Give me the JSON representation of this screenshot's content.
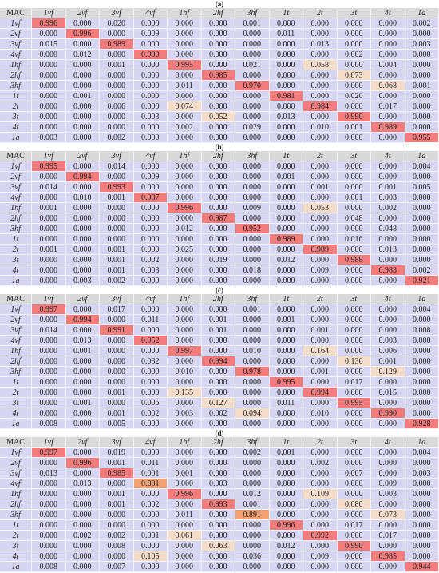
{
  "panels": [
    {
      "label": "(a)",
      "header": [
        "MAC",
        "1vf",
        "2vf",
        "3vf",
        "4vf",
        "1hf",
        "2hf",
        "3hf",
        "1t",
        "2t",
        "3t",
        "4t",
        "1a"
      ],
      "rows": [
        {
          "label": "1vf",
          "cells": [
            "0.996",
            "0.000",
            "0.020",
            "0.000",
            "0.000",
            "0.000",
            "0.001",
            "0.000",
            "0.000",
            "0.000",
            "0.000",
            "0.002"
          ]
        },
        {
          "label": "2vf",
          "cells": [
            "0.000",
            "0.996",
            "0.000",
            "0.009",
            "0.000",
            "0.000",
            "0.000",
            "0.011",
            "0.000",
            "0.000",
            "0.000",
            "0.000"
          ]
        },
        {
          "label": "3vf",
          "cells": [
            "0.015",
            "0.000",
            "0.989",
            "0.000",
            "0.000",
            "0.000",
            "0.000",
            "0.000",
            "0.013",
            "0.000",
            "0.000",
            "0.003"
          ]
        },
        {
          "label": "4vf",
          "cells": [
            "0.000",
            "0.012",
            "0.000",
            "0.990",
            "0.000",
            "0.000",
            "0.000",
            "0.000",
            "0.000",
            "0.002",
            "0.000",
            "0.000"
          ]
        },
        {
          "label": "1hf",
          "cells": [
            "0.000",
            "0.000",
            "0.001",
            "0.000",
            "0.995",
            "0.000",
            "0.021",
            "0.000",
            "0.058",
            "0.000",
            "0.004",
            "0.000"
          ]
        },
        {
          "label": "2hf",
          "cells": [
            "0.000",
            "0.000",
            "0.000",
            "0.000",
            "0.000",
            "0.985",
            "0.000",
            "0.000",
            "0.000",
            "0.073",
            "0.000",
            "0.000"
          ]
        },
        {
          "label": "3hf",
          "cells": [
            "0.000",
            "0.000",
            "0.000",
            "0.000",
            "0.011",
            "0.000",
            "0.970",
            "0.000",
            "0.000",
            "0.000",
            "0.068",
            "0.001"
          ]
        },
        {
          "label": "1t",
          "cells": [
            "0.000",
            "0.001",
            "0.000",
            "0.000",
            "0.000",
            "0.000",
            "0.000",
            "0.981",
            "0.000",
            "0.020",
            "0.000",
            "0.000"
          ]
        },
        {
          "label": "2t",
          "cells": [
            "0.000",
            "0.000",
            "0.006",
            "0.000",
            "0.074",
            "0.000",
            "0.000",
            "0.000",
            "0.984",
            "0.000",
            "0.017",
            "0.000"
          ]
        },
        {
          "label": "3t",
          "cells": [
            "0.000",
            "0.000",
            "0.000",
            "0.003",
            "0.000",
            "0.052",
            "0.000",
            "0.013",
            "0.000",
            "0.990",
            "0.000",
            "0.000"
          ]
        },
        {
          "label": "4t",
          "cells": [
            "0.000",
            "0.000",
            "0.000",
            "0.000",
            "0.002",
            "0.000",
            "0.029",
            "0.000",
            "0.010",
            "0.001",
            "0.989",
            "0.000"
          ]
        },
        {
          "label": "1a",
          "cells": [
            "0.003",
            "0.000",
            "0.002",
            "0.000",
            "0.000",
            "0.000",
            "0.000",
            "0.000",
            "0.000",
            "0.000",
            "0.000",
            "0.955"
          ]
        }
      ]
    },
    {
      "label": "(b)",
      "header": [
        "MAC",
        "1vf",
        "2vf",
        "3vf",
        "4vf",
        "1hf",
        "2hf",
        "3hf",
        "1t",
        "2t",
        "3t",
        "4t",
        "1a"
      ],
      "rows": [
        {
          "label": "1vf",
          "cells": [
            "0.995",
            "0.000",
            "0.014",
            "0.000",
            "0.000",
            "0.000",
            "0.000",
            "0.000",
            "0.000",
            "0.000",
            "0.000",
            "0.004"
          ]
        },
        {
          "label": "2vf",
          "cells": [
            "0.000",
            "0.994",
            "0.000",
            "0.009",
            "0.000",
            "0.000",
            "0.000",
            "0.001",
            "0.000",
            "0.000",
            "0.000",
            "0.000"
          ]
        },
        {
          "label": "3vf",
          "cells": [
            "0.014",
            "0.000",
            "0.993",
            "0.000",
            "0.000",
            "0.000",
            "0.000",
            "0.000",
            "0.001",
            "0.000",
            "0.001",
            "0.005"
          ]
        },
        {
          "label": "4vf",
          "cells": [
            "0.000",
            "0.010",
            "0.001",
            "0.987",
            "0.000",
            "0.000",
            "0.000",
            "0.000",
            "0.000",
            "0.001",
            "0.003",
            "0.000"
          ]
        },
        {
          "label": "1hf",
          "cells": [
            "0.001",
            "0.000",
            "0.000",
            "0.000",
            "0.996",
            "0.000",
            "0.009",
            "0.000",
            "0.053",
            "0.000",
            "0.002",
            "0.000"
          ]
        },
        {
          "label": "2hf",
          "cells": [
            "0.000",
            "0.000",
            "0.000",
            "0.000",
            "0.000",
            "0.987",
            "0.000",
            "0.000",
            "0.000",
            "0.048",
            "0.000",
            "0.000"
          ]
        },
        {
          "label": "3hf",
          "cells": [
            "0.000",
            "0.000",
            "0.000",
            "0.000",
            "0.012",
            "0.000",
            "0.952",
            "0.000",
            "0.000",
            "0.000",
            "0.048",
            "0.000"
          ]
        },
        {
          "label": "1t",
          "cells": [
            "0.000",
            "0.000",
            "0.000",
            "0.000",
            "0.000",
            "0.000",
            "0.000",
            "0.989",
            "0.000",
            "0.016",
            "0.000",
            "0.000"
          ]
        },
        {
          "label": "2t",
          "cells": [
            "0.001",
            "0.000",
            "0.001",
            "0.000",
            "0.025",
            "0.000",
            "0.000",
            "0.000",
            "0.989",
            "0.000",
            "0.013",
            "0.000"
          ]
        },
        {
          "label": "3t",
          "cells": [
            "0.000",
            "0.000",
            "0.001",
            "0.002",
            "0.000",
            "0.019",
            "0.000",
            "0.012",
            "0.000",
            "0.988",
            "0.000",
            "0.000"
          ]
        },
        {
          "label": "4t",
          "cells": [
            "0.000",
            "0.000",
            "0.001",
            "0.003",
            "0.000",
            "0.000",
            "0.018",
            "0.000",
            "0.009",
            "0.000",
            "0.983",
            "0.002"
          ]
        },
        {
          "label": "1a",
          "cells": [
            "0.000",
            "0.003",
            "0.002",
            "0.000",
            "0.000",
            "0.000",
            "0.000",
            "0.000",
            "0.000",
            "0.000",
            "0.000",
            "0.921"
          ]
        }
      ]
    },
    {
      "label": "(c)",
      "header": [
        "MAC",
        "1vf",
        "2vf",
        "3vf",
        "4vf",
        "1hf",
        "2hf",
        "3hf",
        "1t",
        "2t",
        "3t",
        "4t",
        "1a"
      ],
      "rows": [
        {
          "label": "1vf",
          "cells": [
            "0.997",
            "0.000",
            "0.017",
            "0.000",
            "0.000",
            "0.000",
            "0.001",
            "0.000",
            "0.000",
            "0.000",
            "0.000",
            "0.004"
          ]
        },
        {
          "label": "2vf",
          "cells": [
            "0.000",
            "0.994",
            "0.000",
            "0.011",
            "0.000",
            "0.001",
            "0.000",
            "0.001",
            "0.000",
            "0.000",
            "0.000",
            "0.000"
          ]
        },
        {
          "label": "3vf",
          "cells": [
            "0.014",
            "0.000",
            "0.991",
            "0.000",
            "0.000",
            "0.001",
            "0.000",
            "0.000",
            "0.001",
            "0.000",
            "0.000",
            "0.008"
          ]
        },
        {
          "label": "4vf",
          "cells": [
            "0.000",
            "0.013",
            "0.000",
            "0.952",
            "0.000",
            "0.000",
            "0.000",
            "0.000",
            "0.000",
            "0.000",
            "0.003",
            "0.000"
          ]
        },
        {
          "label": "1hf",
          "cells": [
            "0.000",
            "0.001",
            "0.000",
            "0.000",
            "0.997",
            "0.000",
            "0.010",
            "0.000",
            "0.164",
            "0.000",
            "0.006",
            "0.000"
          ]
        },
        {
          "label": "2hf",
          "cells": [
            "0.000",
            "0.000",
            "0.000",
            "0.032",
            "0.000",
            "0.994",
            "0.000",
            "0.000",
            "0.000",
            "0.136",
            "0.001",
            "0.000"
          ]
        },
        {
          "label": "3hf",
          "cells": [
            "0.000",
            "0.000",
            "0.000",
            "0.000",
            "0.010",
            "0.000",
            "0.978",
            "0.000",
            "0.001",
            "0.000",
            "0.129",
            "0.000"
          ]
        },
        {
          "label": "1t",
          "cells": [
            "0.000",
            "0.000",
            "0.000",
            "0.000",
            "0.000",
            "0.000",
            "0.000",
            "0.995",
            "0.000",
            "0.017",
            "0.000",
            "0.000"
          ]
        },
        {
          "label": "2t",
          "cells": [
            "0.000",
            "0.000",
            "0.001",
            "0.000",
            "0.135",
            "0.000",
            "0.000",
            "0.000",
            "0.994",
            "0.000",
            "0.015",
            "0.000"
          ]
        },
        {
          "label": "3t",
          "cells": [
            "0.000",
            "0.001",
            "0.000",
            "0.006",
            "0.000",
            "0.127",
            "0.000",
            "0.011",
            "0.000",
            "0.995",
            "0.000",
            "0.000"
          ]
        },
        {
          "label": "4t",
          "cells": [
            "0.000",
            "0.000",
            "0.001",
            "0.002",
            "0.003",
            "0.002",
            "0.094",
            "0.000",
            "0.010",
            "0.000",
            "0.990",
            "0.000"
          ]
        },
        {
          "label": "1a",
          "cells": [
            "0.008",
            "0.000",
            "0.005",
            "0.000",
            "0.000",
            "0.000",
            "0.000",
            "0.000",
            "0.000",
            "0.000",
            "0.000",
            "0.928"
          ]
        }
      ]
    },
    {
      "label": "(d)",
      "header": [
        "MAC",
        "1vf",
        "2vf",
        "3vf",
        "4vf",
        "1hf",
        "2hf",
        "3hf",
        "1t",
        "2t",
        "3t",
        "4t",
        "1a"
      ],
      "rows": [
        {
          "label": "1vf",
          "cells": [
            "0.997",
            "0.000",
            "0.019",
            "0.000",
            "0.000",
            "0.000",
            "0.002",
            "0.001",
            "0.000",
            "0.000",
            "0.000",
            "0.004"
          ]
        },
        {
          "label": "2vf",
          "cells": [
            "0.000",
            "0.996",
            "0.001",
            "0.011",
            "0.000",
            "0.000",
            "0.000",
            "0.000",
            "0.002",
            "0.000",
            "0.000",
            "0.000"
          ]
        },
        {
          "label": "3vf",
          "cells": [
            "0.013",
            "0.000",
            "0.985",
            "0.001",
            "0.001",
            "0.000",
            "0.000",
            "0.000",
            "0.000",
            "0.007",
            "0.000",
            "0.003"
          ]
        },
        {
          "label": "4vf",
          "cells": [
            "0.000",
            "0.013",
            "0.000",
            "0.881",
            "0.000",
            "0.003",
            "0.000",
            "0.000",
            "0.000",
            "0.000",
            "0.009",
            "0.000"
          ]
        },
        {
          "label": "1hf",
          "cells": [
            "0.000",
            "0.000",
            "0.001",
            "0.000",
            "0.996",
            "0.000",
            "0.012",
            "0.000",
            "0.109",
            "0.000",
            "0.003",
            "0.000"
          ]
        },
        {
          "label": "2hf",
          "cells": [
            "0.000",
            "0.000",
            "0.001",
            "0.002",
            "0.000",
            "0.993",
            "0.001",
            "0.000",
            "0.000",
            "0.080",
            "0.000",
            "0.000"
          ]
        },
        {
          "label": "3hf",
          "cells": [
            "0.000",
            "0.000",
            "0.000",
            "0.000",
            "0.011",
            "0.000",
            "0.891",
            "0.000",
            "0.000",
            "0.000",
            "0.073",
            "0.000"
          ]
        },
        {
          "label": "1t",
          "cells": [
            "0.000",
            "0.000",
            "0.000",
            "0.000",
            "0.000",
            "0.000",
            "0.000",
            "0.996",
            "0.000",
            "0.017",
            "0.000",
            "0.000"
          ]
        },
        {
          "label": "2t",
          "cells": [
            "0.000",
            "0.002",
            "0.002",
            "0.001",
            "0.061",
            "0.000",
            "0.000",
            "0.000",
            "0.992",
            "0.000",
            "0.017",
            "0.000"
          ]
        },
        {
          "label": "3t",
          "cells": [
            "0.000",
            "0.000",
            "0.008",
            "0.000",
            "0.000",
            "0.063",
            "0.000",
            "0.012",
            "0.000",
            "0.990",
            "0.000",
            "0.000"
          ]
        },
        {
          "label": "4t",
          "cells": [
            "0.000",
            "0.000",
            "0.000",
            "0.105",
            "0.000",
            "0.000",
            "0.036",
            "0.000",
            "0.009",
            "0.000",
            "0.985",
            "0.000"
          ]
        },
        {
          "label": "1a",
          "cells": [
            "0.008",
            "0.000",
            "0.007",
            "0.000",
            "0.000",
            "0.000",
            "0.000",
            "0.000",
            "0.000",
            "0.000",
            "0.000",
            "0.944"
          ]
        }
      ]
    }
  ]
}
